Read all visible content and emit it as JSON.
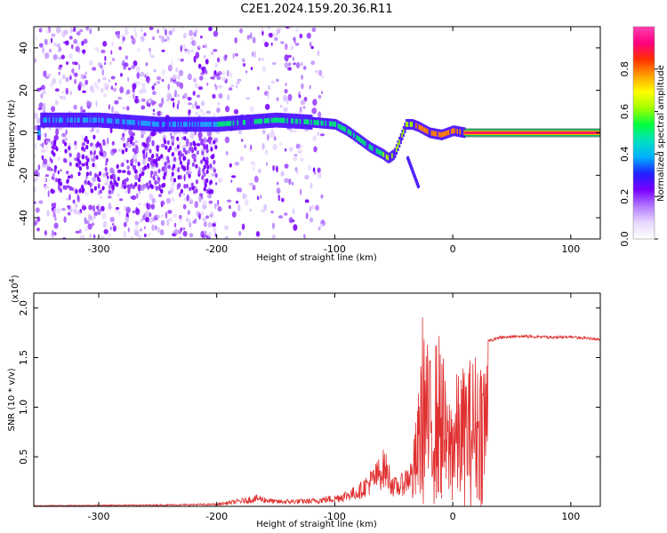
{
  "chart_data": [
    {
      "type": "heatmap",
      "title": "C2E1.2024.159.20.36.R11",
      "xlabel": "Height of straight line (km)",
      "ylabel": "Frequency (Hz)",
      "xlim": [
        -355,
        125
      ],
      "ylim": [
        -50,
        50
      ],
      "xticks": [
        -300,
        -200,
        -100,
        0,
        100
      ],
      "yticks": [
        -40,
        -20,
        0,
        20,
        40
      ],
      "colorbar": {
        "label": "Normalized spectral amplitude",
        "range": [
          0.0,
          1.0
        ],
        "ticks": [
          0.0,
          0.2,
          0.4,
          0.6,
          0.8
        ],
        "tick_labels": [
          "0.0",
          "0.2",
          "0.4",
          "0.6",
          "0.8"
        ],
        "colors": [
          "#ffffff",
          "#e8d8ff",
          "#b27aff",
          "#7a00ff",
          "#2020ff",
          "#00b0ff",
          "#00e0c0",
          "#00ff40",
          "#a0ff00",
          "#ffff00",
          "#ffa000",
          "#ff3000",
          "#ff0080",
          "#ff40b0"
        ]
      },
      "ridge": {
        "x": [
          -350,
          -300,
          -250,
          -200,
          -150,
          -120,
          -100,
          -90,
          -80,
          -70,
          -60,
          -55,
          -50,
          -45,
          -40,
          -35,
          -30,
          -20,
          -10,
          0,
          10,
          125
        ],
        "y": [
          6,
          6,
          4,
          4,
          6,
          5,
          4,
          1,
          -3,
          -7,
          -10,
          -12,
          -10,
          -3,
          4,
          4,
          3,
          0,
          -1,
          1,
          0,
          0
        ]
      }
    },
    {
      "type": "line",
      "xlabel": "Height of straight line (km)",
      "ylabel": "SNR (10 * v/v)",
      "scale_label": "(x10",
      "scale_exponent": "4",
      "scale_suffix": ")",
      "xlim": [
        -355,
        125
      ],
      "ylim": [
        0,
        2.15
      ],
      "xticks": [
        -300,
        -200,
        -100,
        0,
        100
      ],
      "yticks": [
        0.5,
        1.0,
        1.5,
        2.0
      ],
      "ytick_labels": [
        "0.5",
        "1.0",
        "1.5",
        "2.0"
      ],
      "color": "#e03030",
      "envelope": {
        "x": [
          -355,
          -250,
          -200,
          -180,
          -165,
          -150,
          -120,
          -100,
          -80,
          -65,
          -58,
          -50,
          -45,
          -40,
          -35,
          -30,
          -25,
          -20,
          -15,
          -10,
          -5,
          0,
          10,
          20,
          30,
          40,
          60,
          80,
          100,
          125
        ],
        "y": [
          0.01,
          0.02,
          0.03,
          0.08,
          0.12,
          0.07,
          0.08,
          0.12,
          0.22,
          0.45,
          0.6,
          0.3,
          0.3,
          0.4,
          0.5,
          1.0,
          2.1,
          1.5,
          1.7,
          1.8,
          1.1,
          1.3,
          1.45,
          1.6,
          1.68,
          1.72,
          1.73,
          1.72,
          1.72,
          1.7
        ]
      }
    }
  ]
}
